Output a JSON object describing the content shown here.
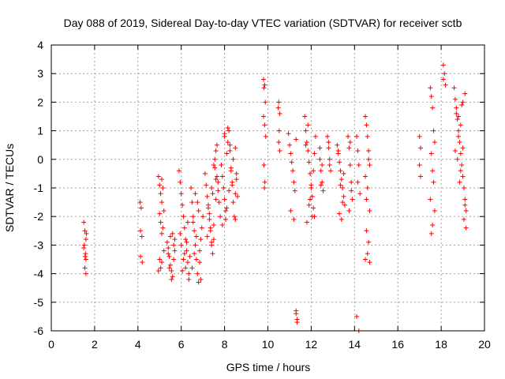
{
  "chart_data": {
    "type": "scatter",
    "title": "Day 088 of 2019, Sidereal Day-to-day VTEC variation (SDTVAR) for receiver sctb",
    "xlabel": "GPS time / hours",
    "ylabel": "SDTVAR / TECUs",
    "xlim": [
      0,
      20
    ],
    "ylim": [
      -6,
      4
    ],
    "xticks": [
      0,
      2,
      4,
      6,
      8,
      10,
      12,
      14,
      16,
      18,
      20
    ],
    "yticks": [
      -6,
      -5,
      -4,
      -3,
      -2,
      -1,
      0,
      1,
      2,
      3,
      4
    ],
    "grid": true,
    "marker": "plus",
    "color": "#ff0000",
    "series": [
      {
        "name": "SDTVAR",
        "x": [
          1.5,
          1.55,
          1.6,
          1.52,
          1.58,
          1.6,
          1.55,
          1.62,
          1.5,
          1.56,
          1.6,
          4.1,
          4.15,
          4.12,
          4.18,
          4.12,
          4.2,
          4.95,
          5.0,
          5.05,
          5.1,
          5.0,
          5.05,
          5.15,
          5.1,
          5.2,
          5.0,
          5.05,
          4.95,
          5.1,
          5.2,
          5.15,
          5.1,
          5.35,
          5.4,
          5.45,
          5.5,
          5.55,
          5.6,
          5.65,
          5.7,
          5.5,
          5.6,
          5.55,
          5.45,
          5.65,
          5.4,
          5.7,
          5.9,
          5.95,
          6.0,
          6.05,
          6.1,
          6.15,
          6.2,
          6.25,
          6.3,
          6.35,
          6.4,
          6.0,
          6.1,
          6.2,
          6.3,
          5.95,
          6.05,
          6.15,
          6.25,
          6.35,
          6.45,
          6.5,
          6.55,
          6.6,
          6.65,
          6.7,
          6.75,
          6.8,
          6.85,
          6.9,
          6.95,
          7.0,
          6.6,
          6.7,
          6.8,
          6.5,
          6.9,
          6.55,
          6.75,
          6.65,
          6.85,
          7.1,
          7.15,
          7.2,
          7.25,
          7.3,
          7.35,
          7.4,
          7.45,
          7.5,
          7.55,
          7.6,
          7.65,
          7.7,
          7.75,
          7.8,
          7.2,
          7.3,
          7.4,
          7.5,
          7.6,
          7.7,
          7.25,
          7.35,
          7.45,
          7.55,
          7.65,
          7.5,
          7.4,
          7.6,
          7.85,
          7.9,
          7.95,
          8.0,
          8.05,
          8.1,
          8.15,
          8.2,
          8.25,
          8.3,
          8.35,
          8.4,
          8.45,
          8.5,
          8.55,
          8.6,
          7.9,
          8.0,
          8.1,
          8.2,
          8.3,
          8.4,
          8.5,
          8.05,
          8.15,
          8.25,
          8.35,
          8.0,
          8.5,
          8.55,
          9.8,
          9.85,
          9.82,
          9.88,
          9.8,
          9.85,
          9.9,
          9.82,
          9.86,
          9.84,
          10.5,
          10.55,
          10.52,
          10.5,
          10.55,
          10.48,
          10.95,
          11.0,
          11.05,
          11.1,
          11.15,
          11.2,
          11.25,
          11.3,
          11.35,
          11.05,
          11.2,
          11.3,
          11.3,
          11.35,
          11.7,
          11.75,
          11.8,
          11.85,
          11.9,
          11.95,
          12.0,
          12.05,
          12.1,
          12.15,
          12.2,
          11.8,
          11.9,
          12.0,
          12.1,
          11.75,
          11.95,
          12.05,
          11.85,
          12.15,
          12.4,
          12.45,
          12.5,
          12.55,
          12.4,
          12.5,
          12.45,
          12.75,
          12.8,
          12.85,
          12.9,
          12.8,
          12.85,
          13.2,
          13.25,
          13.3,
          13.35,
          13.4,
          13.45,
          13.5,
          13.55,
          13.3,
          13.4,
          13.5,
          13.25,
          13.45,
          13.35,
          13.7,
          13.75,
          13.8,
          13.85,
          13.9,
          13.75,
          13.85,
          13.8,
          14.1,
          14.15,
          14.2,
          14.15,
          14.25,
          14.1,
          14.2,
          14.5,
          14.55,
          14.6,
          14.65,
          14.7,
          14.5,
          14.6,
          14.7,
          14.55,
          14.65,
          14.6,
          14.5,
          14.7,
          14.55,
          14.65,
          17.0,
          17.05,
          17.0,
          17.05,
          17.5,
          17.55,
          17.6,
          17.65,
          17.7,
          17.55,
          17.6,
          17.65,
          17.5,
          17.7,
          17.6,
          17.55,
          18.1,
          18.15,
          18.2,
          18.1,
          18.6,
          18.65,
          18.7,
          18.75,
          18.8,
          18.85,
          18.9,
          18.95,
          19.0,
          19.05,
          19.1,
          19.15,
          18.7,
          18.8,
          18.9,
          19.0,
          19.1,
          18.75,
          18.85,
          18.95,
          19.05,
          18.65,
          19.15,
          19.0,
          19.1,
          18.9,
          18.8
        ],
        "y": [
          -2.2,
          -2.5,
          -2.8,
          -3.0,
          -3.3,
          -3.5,
          -3.8,
          -2.6,
          -3.1,
          -3.4,
          -4.0,
          -1.5,
          -1.7,
          -2.5,
          -2.7,
          -3.4,
          -3.6,
          -0.6,
          -0.9,
          -1.2,
          -1.5,
          -1.9,
          -2.2,
          -2.4,
          -2.6,
          -1.8,
          -3.5,
          -3.8,
          -3.9,
          -3.6,
          -3.2,
          -1.0,
          -0.7,
          -2.9,
          -3.1,
          -3.4,
          -3.7,
          -3.9,
          -4.1,
          -3.5,
          -3.2,
          -2.7,
          -2.6,
          -4.2,
          -3.8,
          -3.0,
          -3.3,
          -2.8,
          -0.4,
          -0.8,
          -1.2,
          -1.6,
          -2.0,
          -2.4,
          -2.8,
          -3.2,
          -3.6,
          -4.0,
          -3.4,
          -3.0,
          -3.5,
          -3.8,
          -2.2,
          -2.6,
          -3.9,
          -3.3,
          -2.9,
          -4.2,
          -1.0,
          -1.5,
          -2.0,
          -2.5,
          -3.0,
          -3.5,
          -4.0,
          -4.3,
          -3.2,
          -2.8,
          -2.4,
          -2.0,
          -3.3,
          -2.7,
          -1.8,
          -3.8,
          -4.2,
          -2.2,
          -1.5,
          -1.2,
          -3.6,
          -0.5,
          -0.9,
          -1.3,
          -1.7,
          -2.1,
          -2.5,
          -2.9,
          -3.3,
          -0.2,
          0.0,
          0.3,
          -0.6,
          -1.1,
          -1.5,
          -2.0,
          -2.7,
          -1.9,
          -3.0,
          -2.3,
          -1.4,
          -0.8,
          -1.6,
          -2.4,
          -1.2,
          -0.3,
          0.5,
          -2.8,
          -1.0,
          -0.7,
          -0.2,
          -0.6,
          -1.0,
          -1.4,
          -1.8,
          0.2,
          0.6,
          1.0,
          0.3,
          -0.3,
          -0.9,
          -1.5,
          -2.0,
          0.4,
          -0.5,
          -1.3,
          -2.3,
          0.8,
          -1.7,
          -1.1,
          -0.4,
          0.0,
          -1.2,
          -2.1,
          1.1,
          0.5,
          -0.8,
          0.9,
          -2.1,
          -0.7,
          2.8,
          2.6,
          2.5,
          2.0,
          1.5,
          1.2,
          0.8,
          -0.2,
          -0.8,
          -1.0,
          2.0,
          1.6,
          1.0,
          0.6,
          0.3,
          1.8,
          0.9,
          0.5,
          0.2,
          -0.1,
          -0.4,
          -0.8,
          -1.1,
          -5.3,
          -5.6,
          -1.8,
          -2.1,
          0.7,
          -5.4,
          -5.7,
          1.5,
          1.0,
          0.6,
          0.3,
          -0.1,
          -0.5,
          -0.9,
          -1.3,
          -1.7,
          -2.0,
          0.8,
          -2.2,
          -1.6,
          -1.0,
          -0.4,
          0.5,
          -1.4,
          -2.0,
          1.2,
          0.2,
          0.0,
          -0.4,
          -0.8,
          -1.1,
          0.4,
          -0.2,
          -0.9,
          0.8,
          0.4,
          0.0,
          -0.4,
          0.6,
          -0.2,
          0.5,
          0.2,
          -0.1,
          -0.4,
          -0.7,
          -1.0,
          -1.3,
          -1.6,
          -1.9,
          -2.1,
          -0.5,
          0.3,
          -1.5,
          -0.9,
          0.8,
          0.4,
          -0.2,
          -0.8,
          -1.4,
          -1.8,
          -1.1,
          0.6,
          0.8,
          0.3,
          -0.2,
          -0.8,
          -1.2,
          -5.5,
          -6.0,
          1.5,
          1.2,
          0.8,
          0.3,
          -0.2,
          -0.6,
          -1.0,
          -1.8,
          -2.5,
          -2.9,
          -3.3,
          -3.5,
          -3.6,
          -1.4,
          0.0,
          0.8,
          0.4,
          -0.2,
          -0.6,
          2.5,
          2.2,
          1.8,
          1.0,
          0.6,
          0.2,
          -0.4,
          -0.8,
          -1.4,
          -1.8,
          -2.3,
          -2.6,
          3.3,
          3.0,
          2.6,
          2.8,
          2.5,
          2.1,
          1.8,
          1.4,
          1.0,
          0.6,
          0.2,
          -0.2,
          -0.6,
          -1.0,
          -1.4,
          -1.8,
          1.6,
          0.8,
          1.2,
          0.4,
          2.3,
          0.0,
          -0.8,
          1.9,
          -2.1,
          0.3,
          -2.4,
          2.0,
          -1.6,
          -0.4,
          1.5
        ]
      }
    ]
  }
}
